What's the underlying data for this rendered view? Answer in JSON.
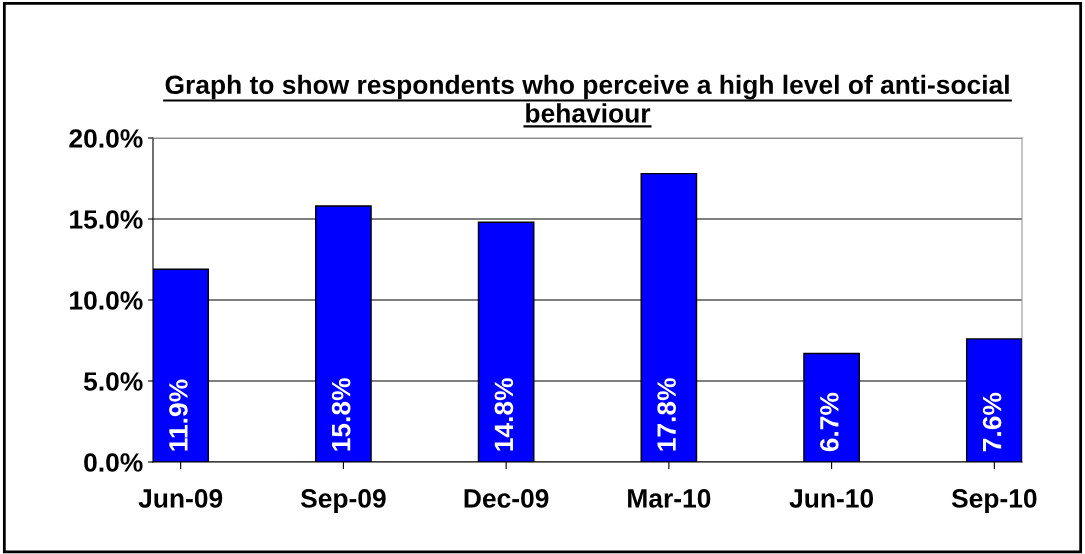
{
  "chart_data": {
    "type": "bar",
    "title": "Graph to show respondents who perceive a high level of anti-social behaviour",
    "categories": [
      "Jun-09",
      "Sep-09",
      "Dec-09",
      "Mar-10",
      "Jun-10",
      "Sep-10"
    ],
    "values": [
      11.9,
      15.8,
      14.8,
      17.8,
      6.7,
      7.6
    ],
    "value_labels": [
      "11.9%",
      "15.8%",
      "14.8%",
      "17.8%",
      "6.7%",
      "7.6%"
    ],
    "color": "#0000ff",
    "ylim": [
      0,
      20
    ],
    "yticks": [
      {
        "value": 0,
        "label": "0.0%"
      },
      {
        "value": 5,
        "label": "5.0%"
      },
      {
        "value": 10,
        "label": "10.0%"
      },
      {
        "value": 15,
        "label": "15.0%"
      },
      {
        "value": 20,
        "label": "20.0%"
      }
    ],
    "grid": "y"
  }
}
